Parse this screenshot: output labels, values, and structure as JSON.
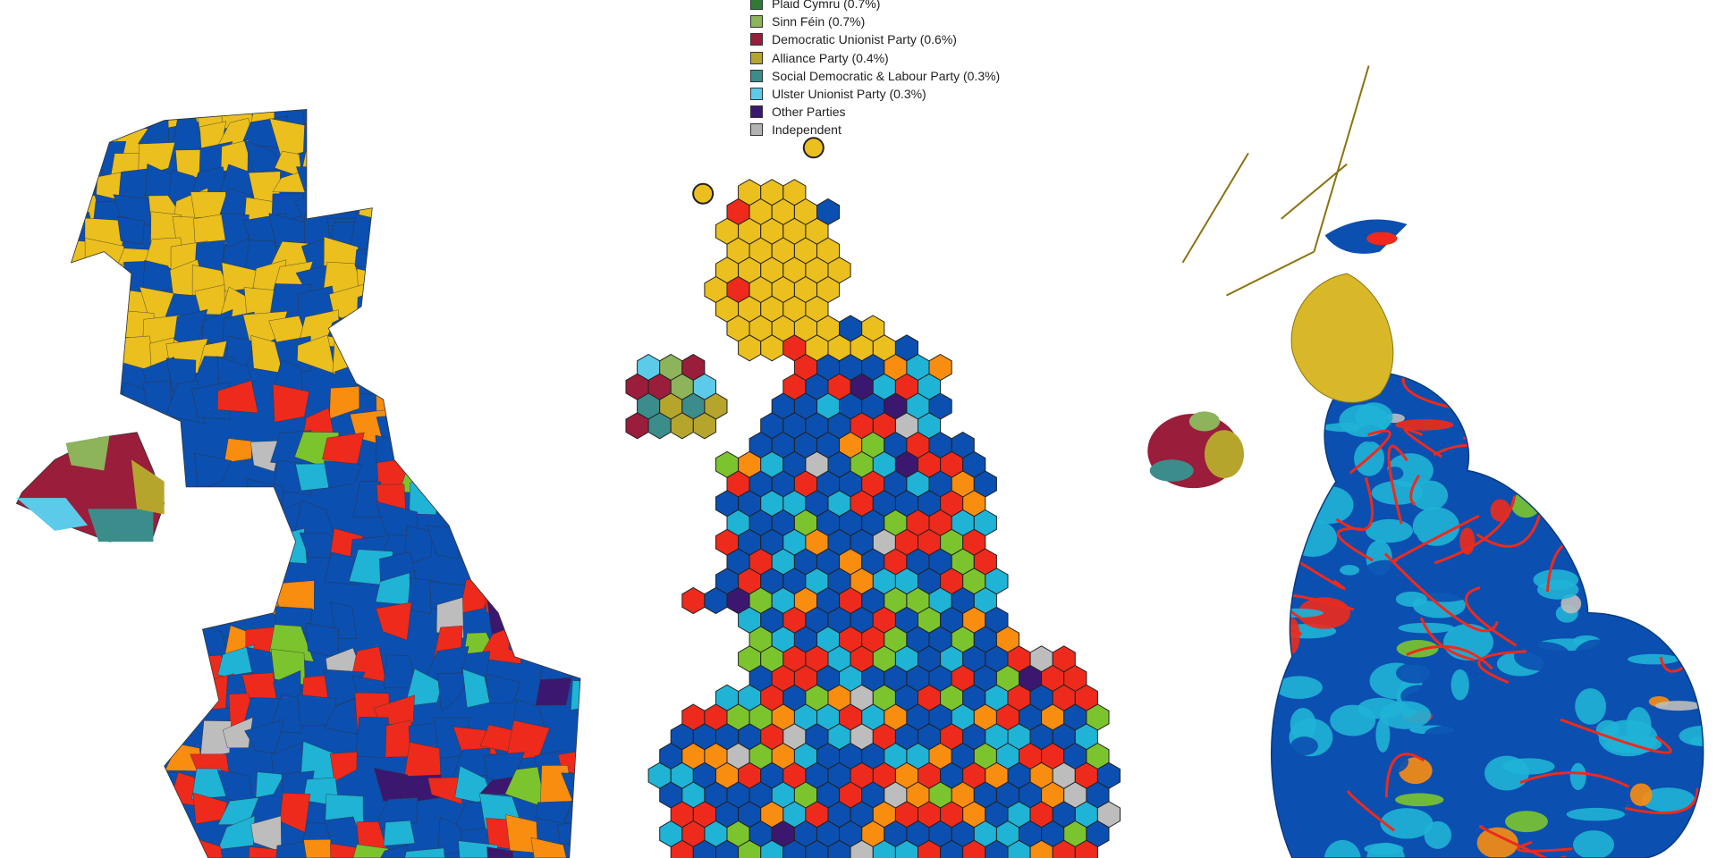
{
  "legend": {
    "items": [
      {
        "label": "Plaid Cymru (0.7%)",
        "color": "#2f7a34"
      },
      {
        "label": "Sinn Féin (0.7%)",
        "color": "#8db35b"
      },
      {
        "label": "Democratic Unionist Party (0.6%)",
        "color": "#9a1d3b"
      },
      {
        "label": "Alliance Party (0.4%)",
        "color": "#b6a52c"
      },
      {
        "label": "Social Democratic & Labour Party (0.3%)",
        "color": "#3b8d8c"
      },
      {
        "label": "Ulster Unionist Party (0.3%)",
        "color": "#5ccbea"
      },
      {
        "label": "Other Parties",
        "color": "#3c176f"
      },
      {
        "label": "Independent",
        "color": "#b3b3b3"
      }
    ]
  }
}
